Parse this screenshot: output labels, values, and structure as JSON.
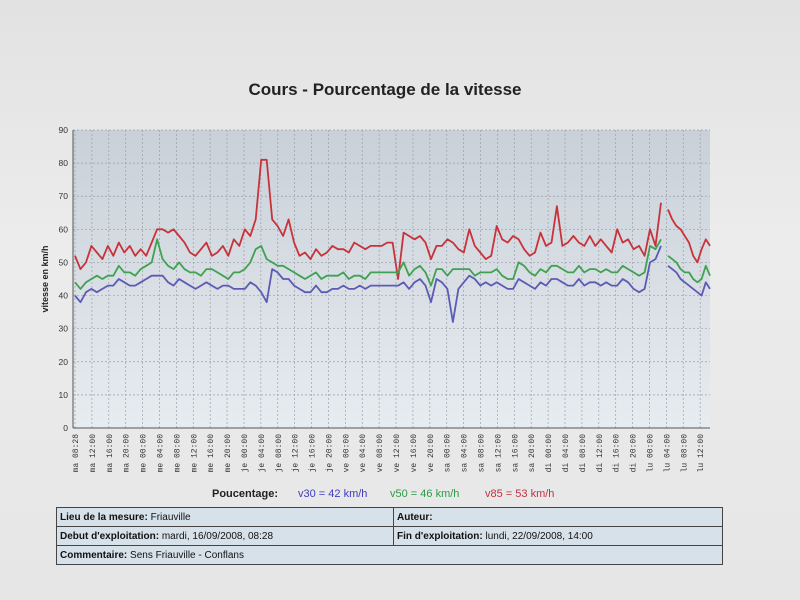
{
  "chart_data": {
    "type": "line",
    "title": "Cours - Pourcentage de la vitesse",
    "ylabel": "vitesse en km/h",
    "xlabel": "",
    "ylim": [
      0,
      90
    ],
    "yticks": [
      0,
      10,
      20,
      30,
      40,
      50,
      60,
      70,
      80,
      90
    ],
    "grid": true,
    "x_ticks": [
      "ma 08:28",
      "ma 12:00",
      "ma 16:00",
      "ma 20:00",
      "me 00:00",
      "me 04:00",
      "me 08:00",
      "me 12:00",
      "me 16:00",
      "me 20:00",
      "je 00:00",
      "je 04:00",
      "je 08:00",
      "je 12:00",
      "je 16:00",
      "je 20:00",
      "ve 00:00",
      "ve 04:00",
      "ve 08:00",
      "ve 12:00",
      "ve 16:00",
      "ve 20:00",
      "sa 00:00",
      "sa 04:00",
      "sa 08:00",
      "sa 12:00",
      "sa 16:00",
      "sa 20:00",
      "di 00:00",
      "di 04:00",
      "di 08:00",
      "di 12:00",
      "di 16:00",
      "di 20:00",
      "lu 00:00",
      "lu 04:00",
      "lu 08:00",
      "lu 12:00"
    ],
    "series": [
      {
        "name": "v85",
        "color": "#c8323a",
        "values": [
          [
            52,
            48,
            50,
            55,
            53,
            51,
            55,
            52,
            56,
            53,
            55,
            52,
            54,
            52,
            56,
            60,
            60,
            59,
            60,
            58,
            56,
            53,
            52,
            54,
            56,
            52,
            53,
            55,
            52,
            57,
            55,
            60,
            58,
            63,
            81,
            81,
            63,
            61,
            58,
            63,
            56,
            52,
            53,
            51,
            54,
            52,
            53,
            55,
            54,
            54,
            53,
            56,
            55,
            54,
            55,
            55,
            55,
            56,
            56,
            45,
            59,
            58,
            57,
            58,
            56,
            51,
            55,
            55,
            57,
            56,
            54,
            53,
            60,
            55,
            53,
            51,
            52,
            61,
            57,
            56,
            58,
            57,
            54,
            52,
            53,
            59,
            55,
            56,
            67,
            55,
            56,
            58,
            56,
            55,
            58,
            55,
            57,
            55,
            53,
            60,
            56,
            57,
            54,
            55,
            52,
            60,
            55,
            68
          ],
          [
            66,
            63,
            61,
            60,
            58,
            56,
            52,
            50,
            54,
            57,
            55
          ]
        ]
      },
      {
        "name": "v50",
        "color": "#3ea251",
        "values": [
          [
            44,
            42,
            44,
            45,
            46,
            45,
            46,
            46,
            49,
            47,
            47,
            46,
            48,
            49,
            50,
            57,
            51,
            49,
            48,
            50,
            48,
            47,
            47,
            46,
            48,
            48,
            47,
            46,
            45,
            47,
            47,
            48,
            50,
            54,
            55,
            51,
            50,
            49,
            49,
            48,
            47,
            46,
            45,
            46,
            47,
            45,
            46,
            46,
            46,
            47,
            45,
            46,
            46,
            45,
            47,
            47,
            47,
            47,
            47,
            47,
            50,
            46,
            48,
            49,
            47,
            43,
            48,
            48,
            46,
            48,
            48,
            48,
            48,
            46,
            47,
            47,
            47,
            48,
            46,
            45,
            45,
            50,
            49,
            47,
            46,
            48,
            47,
            49,
            49,
            48,
            47,
            47,
            49,
            47,
            48,
            48,
            47,
            48,
            47,
            47,
            49,
            48,
            47,
            46,
            47,
            55,
            54,
            57
          ],
          [
            52,
            51,
            50,
            48,
            47,
            47,
            45,
            44,
            45,
            49,
            46
          ]
        ]
      },
      {
        "name": "v30",
        "color": "#5b5bb5",
        "values": [
          [
            40,
            38,
            41,
            42,
            41,
            42,
            43,
            43,
            45,
            44,
            43,
            43,
            44,
            45,
            46,
            46,
            46,
            44,
            43,
            45,
            44,
            43,
            42,
            43,
            44,
            43,
            42,
            43,
            43,
            42,
            42,
            42,
            44,
            43,
            41,
            38,
            48,
            47,
            45,
            45,
            43,
            42,
            41,
            41,
            43,
            41,
            41,
            42,
            42,
            43,
            42,
            42,
            43,
            42,
            43,
            43,
            43,
            43,
            43,
            43,
            44,
            42,
            44,
            45,
            43,
            38,
            45,
            44,
            42,
            32,
            42,
            44,
            46,
            45,
            43,
            44,
            43,
            44,
            43,
            42,
            42,
            45,
            44,
            43,
            42,
            44,
            43,
            45,
            45,
            44,
            43,
            43,
            45,
            43,
            44,
            44,
            43,
            44,
            43,
            43,
            45,
            44,
            42,
            41,
            42,
            50,
            51,
            55
          ],
          [
            49,
            48,
            47,
            45,
            44,
            43,
            42,
            41,
            40,
            44,
            42
          ]
        ]
      }
    ]
  },
  "legend": {
    "label": "Poucentage:",
    "items": [
      {
        "text": "v30 = 42 km/h",
        "color": "#3c3cc2"
      },
      {
        "text": "v50 = 46 km/h",
        "color": "#2f9a46"
      },
      {
        "text": "v85 = 53 km/h",
        "color": "#c33040"
      }
    ]
  },
  "info": {
    "lieu_label": "Lieu de la mesure:",
    "lieu_value": "Friauville",
    "auteur_label": "Auteur:",
    "auteur_value": "",
    "debut_label": "Debut d'exploitation:",
    "debut_value": "mardi, 16/09/2008, 08:28",
    "fin_label": "Fin d'exploitation:",
    "fin_value": "lundi, 22/09/2008, 14:00",
    "commentaire_label": "Commentaire:",
    "commentaire_value": "Sens Friauville - Conflans"
  }
}
